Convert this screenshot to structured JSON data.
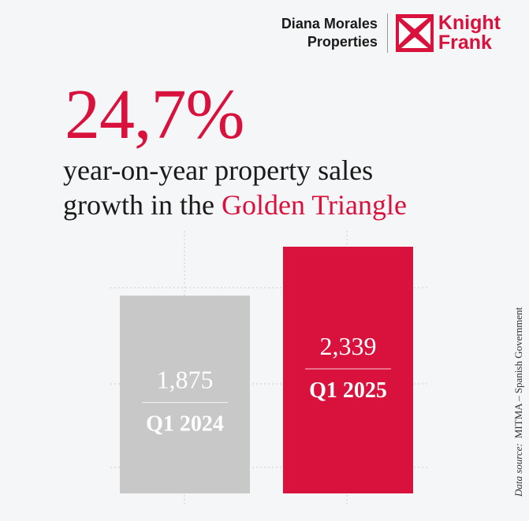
{
  "brand": {
    "agency_line1": "Diana Morales",
    "agency_line2": "Properties",
    "partner_line1": "Knight",
    "partner_line2": "Frank",
    "accent_color": "#d8113d"
  },
  "headline": {
    "value": "24,7%",
    "subtitle_line1": "year-on-year property sales",
    "subtitle_line2_prefix": "growth in the ",
    "subtitle_line2_highlight": "Golden Triangle"
  },
  "chart_data": {
    "type": "bar",
    "categories": [
      "Q1 2024",
      "Q1 2025"
    ],
    "values": [
      1875,
      2339
    ],
    "value_labels": [
      "1,875",
      "2,339"
    ],
    "colors": [
      "#c8c8c8",
      "#d8113d"
    ],
    "grid": true
  },
  "source": {
    "label": "Data source:",
    "text": "MITMA – Spanish Government"
  }
}
